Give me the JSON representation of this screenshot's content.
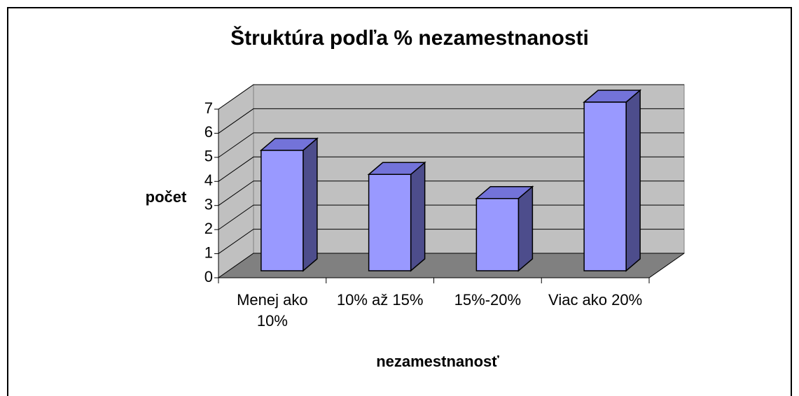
{
  "chart_data": {
    "type": "bar3d",
    "title": "Štruktúra podľa % nezamestnanosti",
    "x_label": "nezamestnanosť",
    "y_label": "počet",
    "categories": [
      "Menej ako 10%",
      "10% až 15%",
      "15%-20%",
      "Viac ako 20%"
    ],
    "values": [
      5,
      4,
      3,
      7
    ],
    "color": "#9999ff",
    "ylim": [
      0,
      7
    ],
    "yticks": [
      0,
      1,
      2,
      3,
      4,
      5,
      6,
      7
    ],
    "grid": true
  }
}
